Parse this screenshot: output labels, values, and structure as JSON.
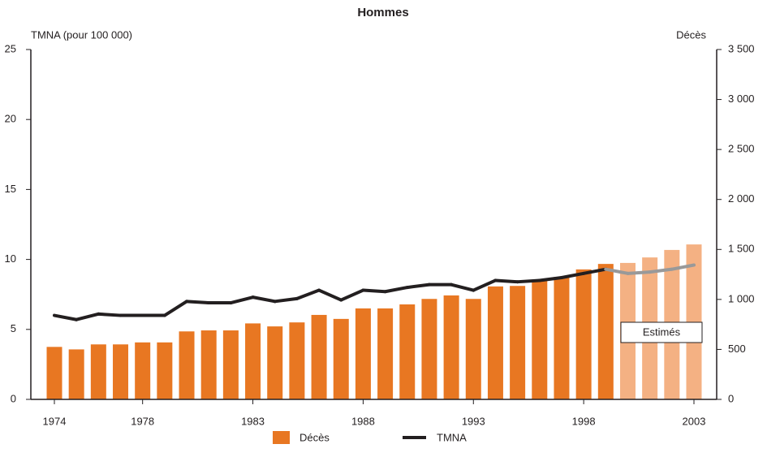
{
  "chart_data": {
    "type": "bar_line",
    "title": "Hommes",
    "y_label": "TMNA (pour 100 000)",
    "y2_label": "Décès",
    "categories": [
      "1974",
      null,
      null,
      null,
      "1978",
      null,
      null,
      null,
      null,
      "1983",
      null,
      null,
      null,
      null,
      "1988",
      null,
      null,
      null,
      null,
      "1993",
      null,
      null,
      null,
      null,
      "1998",
      null,
      null,
      null,
      null,
      "2003"
    ],
    "series": [
      {
        "name": "Décès",
        "kind": "bar",
        "axis": "y2",
        "color": "#e87722",
        "colors": [
          "#e87722",
          "#e87722",
          "#e87722",
          "#e87722",
          "#e87722",
          "#e87722",
          "#e87722",
          "#e87722",
          "#e87722",
          "#e87722",
          "#e87722",
          "#e87722",
          "#e87722",
          "#e87722",
          "#e87722",
          "#e87722",
          "#e87722",
          "#e87722",
          "#e87722",
          "#e87722",
          "#e87722",
          "#e87722",
          "#e87722",
          "#e87722",
          "#e87722",
          "#e87722",
          "#f4b183",
          "#f4b183",
          "#f4b183",
          "#f4b183"
        ],
        "values": [
          525,
          500,
          550,
          550,
          570,
          570,
          680,
          690,
          690,
          760,
          730,
          770,
          845,
          805,
          910,
          910,
          950,
          1005,
          1040,
          1005,
          1130,
          1135,
          1185,
          1225,
          1300,
          1355,
          1365,
          1420,
          1495,
          1550
        ]
      },
      {
        "name": "TMNA",
        "kind": "line",
        "axis": "y",
        "color": "#231f20",
        "colors": [
          "#231f20",
          "#231f20",
          "#231f20",
          "#231f20",
          "#231f20",
          "#231f20",
          "#231f20",
          "#231f20",
          "#231f20",
          "#231f20",
          "#231f20",
          "#231f20",
          "#231f20",
          "#231f20",
          "#231f20",
          "#231f20",
          "#231f20",
          "#231f20",
          "#231f20",
          "#231f20",
          "#231f20",
          "#231f20",
          "#231f20",
          "#231f20",
          "#231f20",
          "#231f20",
          "#999999",
          "#999999",
          "#999999",
          "#999999"
        ],
        "values": [
          6.0,
          5.7,
          6.1,
          6.0,
          6.0,
          6.0,
          7.0,
          6.9,
          6.9,
          7.3,
          7.0,
          7.2,
          7.8,
          7.1,
          7.8,
          7.7,
          8.0,
          8.2,
          8.2,
          7.8,
          8.5,
          8.4,
          8.5,
          8.7,
          9.0,
          9.3,
          9.0,
          9.1,
          9.3,
          9.6
        ]
      }
    ],
    "ylim": [
      0,
      25
    ],
    "yticks": [
      0,
      5,
      10,
      15,
      20,
      25
    ],
    "y2lim": [
      0,
      3500
    ],
    "y2ticks": [
      0,
      500,
      {
        "value": 1000,
        "label": "1 000"
      },
      {
        "value": 1500,
        "label": "1 500"
      },
      {
        "value": 2000,
        "label": "2 000"
      },
      {
        "value": 2500,
        "label": "2 500"
      },
      {
        "value": 3000,
        "label": "3 000"
      },
      {
        "value": 3500,
        "label": "3 500"
      }
    ],
    "annotation": "Estimés",
    "legend": "bottom"
  }
}
